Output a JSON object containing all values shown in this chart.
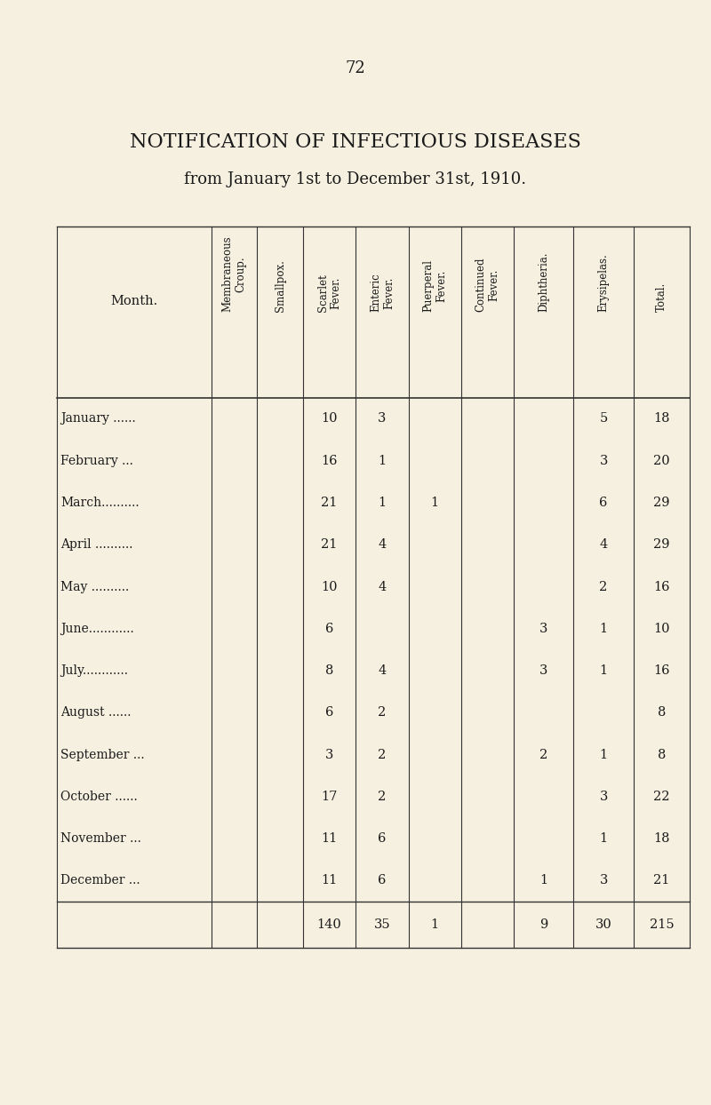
{
  "page_number": "72",
  "title": "NOTIFICATION OF INFECTIOUS DISEASES",
  "subtitle": "from January 1st to December 31st, 1910.",
  "bg_color": "#f5f0e0",
  "text_color": "#1a1a1a",
  "columns": [
    "Membraneous\nCroup.",
    "Smallpox.",
    "Scarlet\nFever.",
    "Enteric\nFever.",
    "Puerperal\nFever.",
    "Continued\nFever.",
    "Diphtheria.",
    "Erysipelas.",
    "Total."
  ],
  "months": [
    "January ......",
    "February ...",
    "March..........",
    "April ..........",
    "May ..........",
    "June............",
    "July............",
    "August ......",
    "September ...",
    "October ......",
    "November ...",
    "December ..."
  ],
  "data": [
    [
      "",
      "",
      "10",
      "3",
      "",
      "",
      "",
      "5",
      "18"
    ],
    [
      "",
      "",
      "16",
      "1",
      "",
      "",
      "",
      "3",
      "20"
    ],
    [
      "",
      "",
      "21",
      "1",
      "1",
      "",
      "",
      "6",
      "29"
    ],
    [
      "",
      "",
      "21",
      "4",
      "",
      "",
      "",
      "4",
      "29"
    ],
    [
      "",
      "",
      "10",
      "4",
      "",
      "",
      "",
      "2",
      "16"
    ],
    [
      "",
      "",
      "6",
      "",
      "",
      "",
      "3",
      "1",
      "10"
    ],
    [
      "",
      "",
      "8",
      "4",
      "",
      "",
      "3",
      "1",
      "16"
    ],
    [
      "",
      "",
      "6",
      "2",
      "",
      "",
      "",
      "",
      "8"
    ],
    [
      "",
      "",
      "3",
      "2",
      "",
      "",
      "2",
      "1",
      "8"
    ],
    [
      "",
      "",
      "17",
      "2",
      "",
      "",
      "",
      "3",
      "22"
    ],
    [
      "",
      "",
      "11",
      "6",
      "",
      "",
      "",
      "1",
      "18"
    ],
    [
      "",
      "",
      "11",
      "6",
      "",
      "",
      "1",
      "3",
      "21"
    ]
  ],
  "totals": [
    "",
    "",
    "140",
    "35",
    "1",
    "",
    "9",
    "30",
    "215"
  ]
}
